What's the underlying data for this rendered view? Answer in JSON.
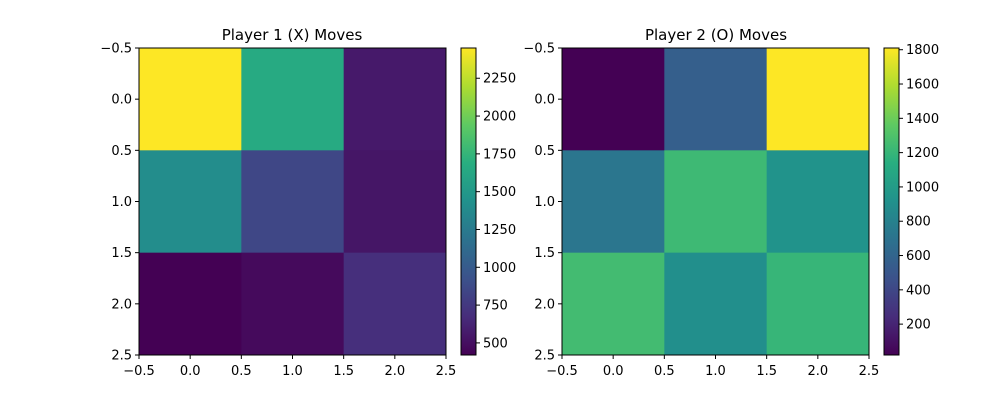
{
  "chart_data": [
    {
      "type": "heatmap",
      "title": "Player 1 (X) Moves",
      "xlabel": "",
      "ylabel": "",
      "xlim": [
        -0.5,
        2.5
      ],
      "ylim": [
        2.5,
        -0.5
      ],
      "xticks": [
        "-0.5",
        "0.0",
        "0.5",
        "1.0",
        "1.5",
        "2.0",
        "2.5"
      ],
      "yticks": [
        "-0.5",
        "0.0",
        "0.5",
        "1.0",
        "1.5",
        "2.0",
        "2.5"
      ],
      "values": [
        [
          2450,
          1650,
          560
        ],
        [
          1400,
          850,
          540
        ],
        [
          420,
          470,
          690
        ]
      ],
      "colorbar": {
        "min": 420,
        "max": 2450,
        "ticks": [
          500,
          750,
          1000,
          1250,
          1500,
          1750,
          2000,
          2250
        ],
        "tick_labels": [
          "500",
          "750",
          "1000",
          "1250",
          "1500",
          "1750",
          "2000",
          "2250"
        ]
      },
      "colormap": "viridis"
    },
    {
      "type": "heatmap",
      "title": "Player 2 (O) Moves",
      "xlabel": "",
      "ylabel": "",
      "xlim": [
        -0.5,
        2.5
      ],
      "ylim": [
        2.5,
        -0.5
      ],
      "xticks": [
        "-0.5",
        "0.0",
        "0.5",
        "1.0",
        "1.5",
        "2.0",
        "2.5"
      ],
      "yticks": [
        "-0.5",
        "0.0",
        "0.5",
        "1.0",
        "1.5",
        "2.0",
        "2.5"
      ],
      "values": [
        [
          20,
          560,
          1810
        ],
        [
          720,
          1230,
          930
        ],
        [
          1250,
          900,
          1200
        ]
      ],
      "colorbar": {
        "min": 20,
        "max": 1810,
        "ticks": [
          200,
          400,
          600,
          800,
          1000,
          1200,
          1400,
          1600,
          1800
        ],
        "tick_labels": [
          "200",
          "400",
          "600",
          "800",
          "1000",
          "1200",
          "1400",
          "1600",
          "1800"
        ]
      },
      "colormap": "viridis"
    }
  ]
}
